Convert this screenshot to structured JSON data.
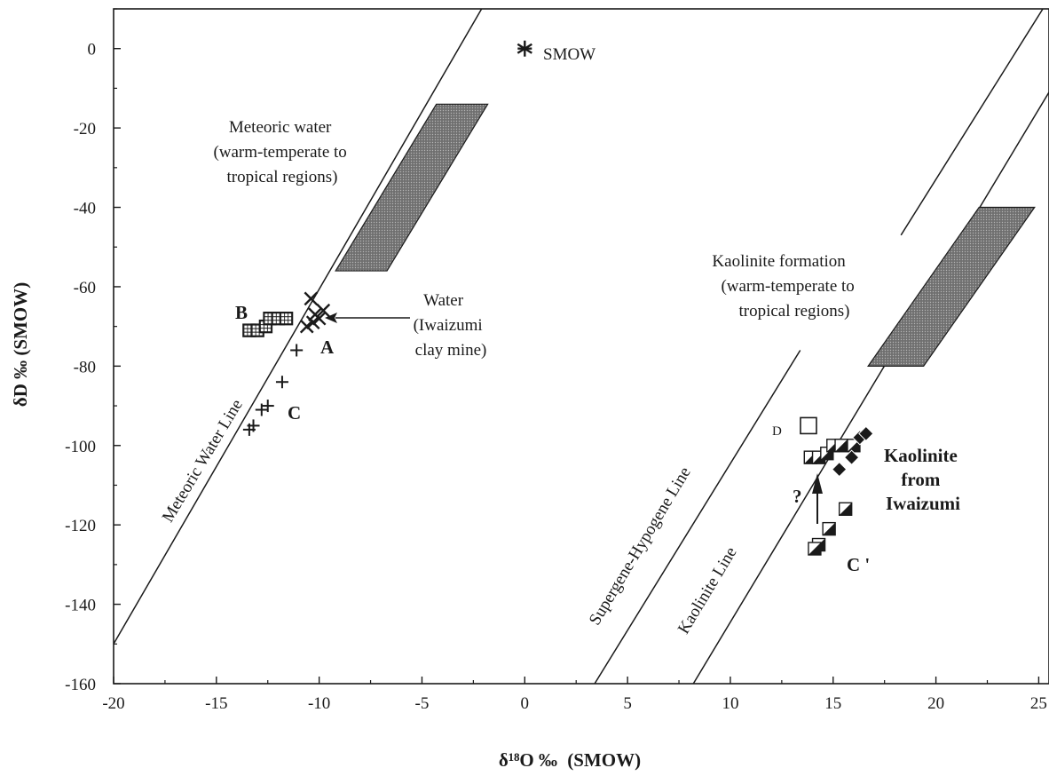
{
  "chart_data": {
    "type": "scatter",
    "xlabel_main": "δ¹⁸O ‰",
    "xlabel_unit": "(SMOW)",
    "ylabel": "δD ‰ (SMOW)",
    "xlim": [
      -20,
      25.5
    ],
    "ylim": [
      -160,
      10
    ],
    "xticks": [
      -20,
      -15,
      -10,
      -5,
      0,
      5,
      10,
      15,
      20,
      25
    ],
    "yticks": [
      0,
      -20,
      -40,
      -60,
      -80,
      -100,
      -120,
      -140,
      -160
    ],
    "grid": false,
    "lines": [
      {
        "name": "Meteoric Water Line",
        "x1": -20,
        "y1": -150,
        "x2": -2.1,
        "y2": 10
      },
      {
        "name": "Supergene-Hypogene Line",
        "x1": 3.4,
        "y1": -160,
        "x2": 13.4,
        "y2": -76
      },
      {
        "name": "Kaolinite Line",
        "x1": 8.2,
        "y1": -160,
        "x2": 25.5,
        "y2": -11
      },
      {
        "name": "upper parallel line",
        "x1": 18.3,
        "y1": -47,
        "x2": 25.2,
        "y2": 10
      }
    ],
    "fields": [
      {
        "name": "Meteoric water (warm-temperate to tropical regions)",
        "polygon": [
          [
            -4.3,
            -14
          ],
          [
            -1.8,
            -14
          ],
          [
            -6.7,
            -56
          ],
          [
            -9.2,
            -56
          ]
        ]
      },
      {
        "name": "Kaolinite formation (warm-temperate to tropical regions)",
        "polygon": [
          [
            22.1,
            -40
          ],
          [
            24.8,
            -40
          ],
          [
            19.4,
            -80
          ],
          [
            16.7,
            -80
          ]
        ]
      }
    ],
    "series": [
      {
        "name": "SMOW",
        "marker": "asterisk",
        "points": [
          [
            0,
            0
          ]
        ]
      },
      {
        "name": "A",
        "marker": "x",
        "points": [
          [
            -10.4,
            -63
          ],
          [
            -10.2,
            -67
          ],
          [
            -10.0,
            -68
          ],
          [
            -9.8,
            -66
          ],
          [
            -10.6,
            -70
          ],
          [
            -10.3,
            -69
          ]
        ]
      },
      {
        "name": "B",
        "marker": "grid-square",
        "points": [
          [
            -13.4,
            -71
          ],
          [
            -13.0,
            -71
          ],
          [
            -12.6,
            -70
          ],
          [
            -12.4,
            -68
          ],
          [
            -12.0,
            -68
          ],
          [
            -11.6,
            -68
          ]
        ]
      },
      {
        "name": "C",
        "marker": "plus",
        "points": [
          [
            -11.1,
            -76
          ],
          [
            -11.8,
            -84
          ],
          [
            -12.5,
            -90
          ],
          [
            -12.8,
            -91
          ],
          [
            -13.2,
            -95
          ],
          [
            -13.4,
            -96
          ]
        ]
      },
      {
        "name": "D",
        "marker": "open-square",
        "points": [
          [
            13.8,
            -95
          ]
        ]
      },
      {
        "name": "Kaolinite from Iwaizumi",
        "marker": "half-square",
        "points": [
          [
            13.9,
            -103
          ],
          [
            14.3,
            -103
          ],
          [
            14.7,
            -102
          ],
          [
            15.0,
            -100
          ],
          [
            15.4,
            -100
          ],
          [
            16.0,
            -100
          ],
          [
            14.3,
            -125
          ],
          [
            14.1,
            -126
          ],
          [
            14.8,
            -121
          ],
          [
            15.6,
            -116
          ]
        ]
      },
      {
        "name": "Kaolinite from Iwaizumi (diamonds)",
        "marker": "diamond",
        "points": [
          [
            15.3,
            -106
          ],
          [
            15.9,
            -103
          ],
          [
            16.3,
            -98
          ],
          [
            16.6,
            -97
          ]
        ]
      }
    ],
    "annotations": {
      "smow": "SMOW",
      "meteoric_field": [
        "Meteoric water",
        "(warm-temperate to",
        "tropical regions)"
      ],
      "kaolinite_field": [
        "Kaolinite formation",
        "(warm-temperate to",
        "tropical regions)"
      ],
      "water": [
        "Water",
        "(Iwaizumi",
        "clay mine)"
      ],
      "kaolinite_iwaizumi": [
        "Kaolinite",
        "from",
        "Iwaizumi"
      ],
      "label_A": "A",
      "label_B": "B",
      "label_C": "C",
      "label_C_prime": "C '",
      "label_D": "D",
      "question": "?",
      "meteoric_line": "Meteoric Water Line",
      "supergene_line": "Supergene-Hypogene Line",
      "kaolinite_line": "Kaolinite Line"
    }
  },
  "colors": {
    "ink": "#1a1a1a",
    "field_fill": "#7d7d7d"
  }
}
